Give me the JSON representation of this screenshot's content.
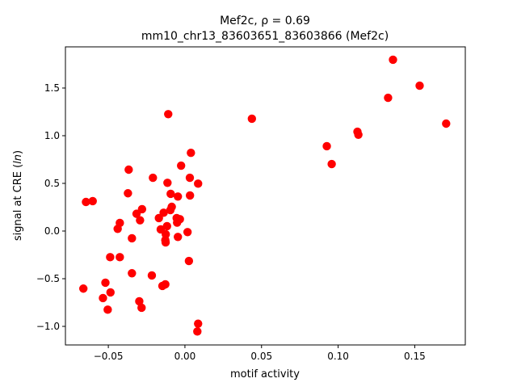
{
  "chart_data": {
    "type": "scatter",
    "title_line1": "Mef2c, ρ = 0.69",
    "title_line2": "mm10_chr13_83603651_83603866 (Mef2c)",
    "xlabel": "motif activity",
    "ylabel_prefix": "signal at CRE (",
    "ylabel_italic": "ln",
    "ylabel_suffix": ")",
    "xlim": [
      -0.078,
      0.183
    ],
    "ylim": [
      -1.195,
      1.932
    ],
    "xticks": [
      "-0.05",
      "0.00",
      "0.05",
      "0.10",
      "0.15"
    ],
    "xtick_values": [
      -0.05,
      0,
      0.05,
      0.1,
      0.15
    ],
    "yticks": [
      "-1.0",
      "-0.5",
      "0.0",
      "0.5",
      "1.0",
      "1.5"
    ],
    "ytick_values": [
      -1.0,
      -0.5,
      0,
      0.5,
      1.0,
      1.5
    ],
    "grid": false,
    "marker_color": "#ff0000",
    "points": [
      [
        -0.0109,
        1.226
      ],
      [
        0.0039,
        0.82
      ],
      [
        -0.0025,
        0.686
      ],
      [
        -0.0367,
        0.644
      ],
      [
        -0.0209,
        0.559
      ],
      [
        0.0032,
        0.559
      ],
      [
        0.0086,
        0.497
      ],
      [
        -0.0114,
        0.506
      ],
      [
        -0.0372,
        0.396
      ],
      [
        -0.0093,
        0.39
      ],
      [
        -0.0046,
        0.362
      ],
      [
        0.0033,
        0.373
      ],
      [
        -0.0646,
        0.305
      ],
      [
        -0.0602,
        0.314
      ],
      [
        -0.028,
        0.229
      ],
      [
        -0.0086,
        0.254
      ],
      [
        -0.0095,
        0.22
      ],
      [
        -0.0139,
        0.192
      ],
      [
        -0.0316,
        0.181
      ],
      [
        -0.017,
        0.136
      ],
      [
        -0.0293,
        0.113
      ],
      [
        -0.0054,
        0.136
      ],
      [
        -0.0033,
        0.124
      ],
      [
        -0.0051,
        0.088
      ],
      [
        -0.0425,
        0.085
      ],
      [
        -0.0117,
        0.051
      ],
      [
        -0.0439,
        0.023
      ],
      [
        -0.0158,
        0.017
      ],
      [
        -0.0125,
        -0.034
      ],
      [
        0.0017,
        -0.011
      ],
      [
        -0.0046,
        -0.062
      ],
      [
        -0.0346,
        -0.076
      ],
      [
        -0.0126,
        -0.119
      ],
      [
        -0.0128,
        -0.095
      ],
      [
        -0.0488,
        -0.274
      ],
      [
        -0.0425,
        -0.274
      ],
      [
        0.0026,
        -0.314
      ],
      [
        -0.0346,
        -0.443
      ],
      [
        -0.0216,
        -0.466
      ],
      [
        -0.0519,
        -0.542
      ],
      [
        -0.0128,
        -0.559
      ],
      [
        -0.0147,
        -0.576
      ],
      [
        -0.0663,
        -0.604
      ],
      [
        -0.0486,
        -0.644
      ],
      [
        -0.0535,
        -0.703
      ],
      [
        -0.0298,
        -0.737
      ],
      [
        -0.0504,
        -0.825
      ],
      [
        -0.0283,
        -0.805
      ],
      [
        0.0086,
        -0.972
      ],
      [
        0.0081,
        -1.054
      ],
      [
        0.0437,
        1.178
      ],
      [
        0.0926,
        0.89
      ],
      [
        0.0958,
        0.703
      ],
      [
        0.1126,
        1.042
      ],
      [
        0.1132,
        1.01
      ],
      [
        0.1326,
        1.398
      ],
      [
        0.1358,
        1.797
      ],
      [
        0.1532,
        1.525
      ],
      [
        0.1705,
        1.127
      ]
    ]
  }
}
